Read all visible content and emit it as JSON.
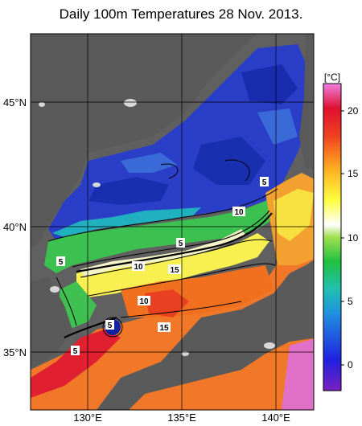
{
  "title": "Daily 100m Temperatures 28 Nov. 2013.",
  "axes": {
    "lat_labels": [
      "45°N",
      "40°N",
      "35°N"
    ],
    "lon_labels": [
      "130°E",
      "135°E",
      "140°E"
    ]
  },
  "colorbar": {
    "unit": "[°C]",
    "ticks": [
      "20",
      "15",
      "10",
      "5",
      "0"
    ],
    "range": [
      -2,
      22
    ]
  },
  "contour_labels": [
    "5",
    "10",
    "5",
    "5",
    "10",
    "15",
    "10",
    "5",
    "15",
    "5"
  ],
  "colors": {
    "land": "#606060",
    "ice_white": "#f2f2f2",
    "cold": "#2030c0",
    "mid": "#30c060",
    "warm": "#f07020",
    "hot": "#e02030"
  }
}
